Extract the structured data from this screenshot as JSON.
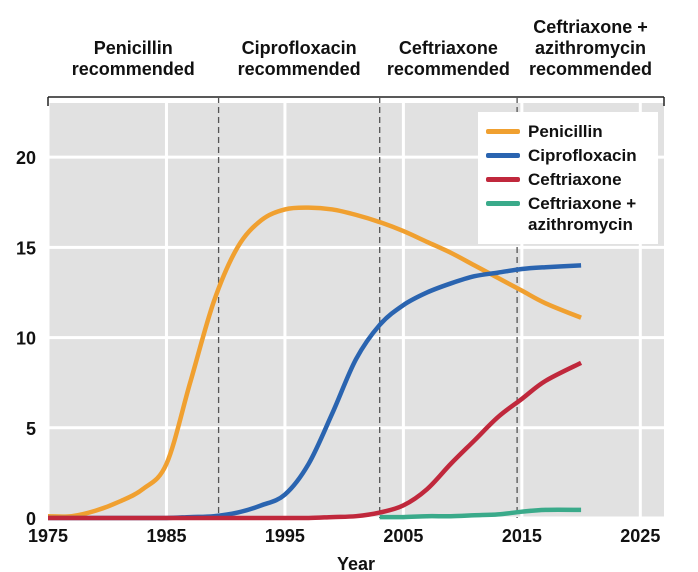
{
  "chart_data": {
    "type": "line",
    "x_label": "Year",
    "x": [
      1975,
      1977,
      1979,
      1981,
      1983,
      1985,
      1987,
      1989,
      1991,
      1993,
      1995,
      1997,
      1999,
      2001,
      2003,
      2005,
      2007,
      2009,
      2011,
      2013,
      2015,
      2017,
      2020
    ],
    "series": [
      {
        "name": "Penicillin",
        "color": "#f0a030",
        "values": [
          0.1,
          0.1,
          0.4,
          0.9,
          1.6,
          3,
          7.5,
          12,
          15,
          16.5,
          17.1,
          17.2,
          17.1,
          16.8,
          16.4,
          15.9,
          15.3,
          14.7,
          14,
          13.3,
          12.6,
          11.9,
          11.1
        ]
      },
      {
        "name": "Ciprofloxacin",
        "color": "#2a64b0",
        "values": [
          0,
          0,
          0,
          0,
          0,
          0,
          0.05,
          0.1,
          0.3,
          0.7,
          1.3,
          3,
          5.8,
          8.8,
          10.7,
          11.8,
          12.5,
          13,
          13.4,
          13.6,
          13.8,
          13.9,
          14
        ]
      },
      {
        "name": "Ceftriaxone",
        "color": "#c0283c",
        "values": [
          0,
          0,
          0,
          0,
          0,
          0,
          0,
          0,
          0,
          0,
          0,
          0,
          0.05,
          0.1,
          0.3,
          0.7,
          1.6,
          3,
          4.3,
          5.6,
          6.6,
          7.6,
          8.6
        ]
      },
      {
        "name": "Ceftriaxone + azithromycin",
        "color": "#3aaa8a",
        "values": [
          null,
          null,
          null,
          null,
          null,
          null,
          null,
          null,
          null,
          null,
          null,
          null,
          null,
          null,
          0.05,
          0.05,
          0.1,
          0.1,
          0.15,
          0.2,
          0.35,
          0.45,
          0.45
        ]
      }
    ],
    "xlim": [
      1975,
      2027
    ],
    "xticks": [
      1975,
      1985,
      1995,
      2005,
      2015,
      2025
    ],
    "ylim": [
      0,
      23
    ],
    "yticks": [
      0,
      5,
      10,
      15,
      20
    ],
    "grid": true,
    "legend": "top-right",
    "period_boundaries": [
      1989.4,
      2003,
      2014.6
    ],
    "periods": [
      "Penicillin recommended",
      "Ciprofloxacin recommended",
      "Ceftriaxone recommended",
      "Ceftriaxone + azithromycin recommended"
    ]
  }
}
